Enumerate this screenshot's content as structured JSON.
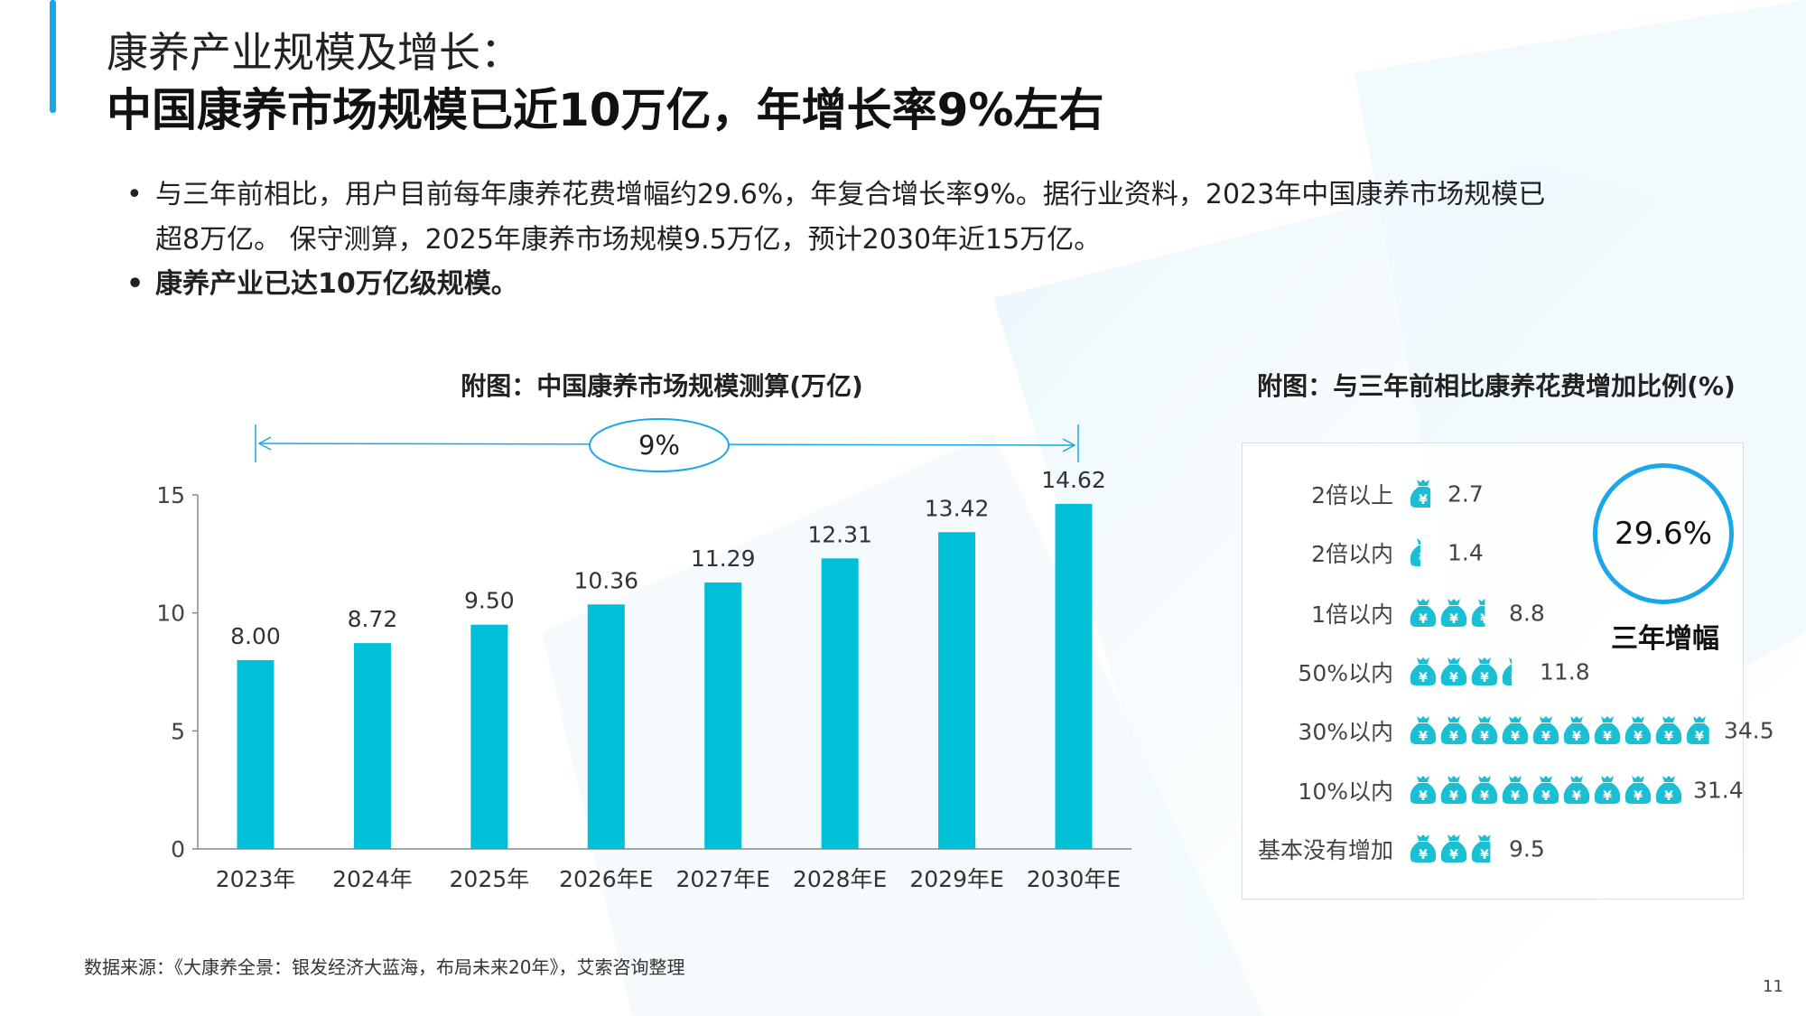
{
  "header": {
    "title_line1": "康养产业规模及增长：",
    "title_line2": "中国康养市场规模已近10万亿，年增长率9%左右"
  },
  "bullets": [
    {
      "text": "与三年前相比，用户目前每年康养花费增幅约29.6%，年复合增长率9%。据行业资料，2023年中国康养市场规模已",
      "bold": false
    },
    {
      "text": "超8万亿。 保守测算，2025年康养市场规模9.5万亿，预计2030年近15万亿。",
      "bold": false
    },
    {
      "text": "康养产业已达10万亿级规模。",
      "bold": true
    }
  ],
  "bullet_symbol": "•",
  "chart_data": [
    {
      "type": "bar",
      "title": "附图：中国康养市场规模测算(万亿)",
      "categories": [
        "2023年",
        "2024年",
        "2025年",
        "2026年E",
        "2027年E",
        "2028年E",
        "2029年E",
        "2030年E"
      ],
      "values": [
        8.0,
        8.72,
        9.5,
        10.36,
        11.29,
        12.31,
        13.42,
        14.62
      ],
      "value_labels": [
        "8.00",
        "8.72",
        "9.50",
        "10.36",
        "11.29",
        "12.31",
        "13.42",
        "14.62"
      ],
      "ylim": [
        0,
        15
      ],
      "yticks": [
        "0",
        "5",
        "10",
        "15"
      ],
      "grid": false,
      "bar_color": "#00c0d8",
      "annotation": {
        "label": "9%",
        "color": "#1aa6e8"
      }
    },
    {
      "type": "pictograph",
      "title": "附图：与三年前相比康养花费增加比例(%)",
      "categories": [
        "2倍以上",
        "2倍以内",
        "1倍以内",
        "50%以内",
        "30%以内",
        "10%以内",
        "基本没有增加"
      ],
      "values": [
        2.7,
        1.4,
        8.8,
        11.8,
        34.5,
        31.4,
        9.5
      ],
      "value_labels": [
        "2.7",
        "1.4",
        "8.8",
        "11.8",
        "34.5",
        "31.4",
        "9.5"
      ],
      "icon": "money-bag-yuan-icon",
      "icon_color": "#1bbfd3",
      "highlight": {
        "value": "29.6%",
        "label": "三年增幅",
        "color": "#1aa6e8"
      }
    }
  ],
  "footer": {
    "source": "数据来源：《大康养全景：银发经济大蓝海，布局未来20年》，艾索咨询整理",
    "page_number": "11"
  }
}
